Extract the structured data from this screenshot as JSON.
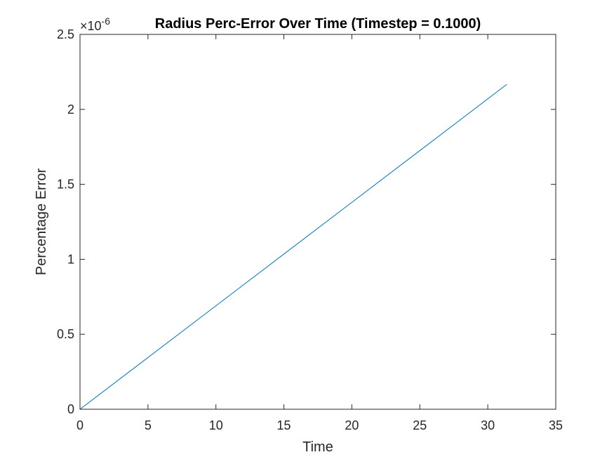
{
  "chart_data": {
    "type": "line",
    "title": "Radius Perc-Error Over Time (Timestep = 0.1000)",
    "xlabel": "Time",
    "ylabel": "Percentage Error",
    "xlim": [
      0,
      35
    ],
    "ylim": [
      0,
      2.5e-06
    ],
    "y_exponent_label": "×10",
    "y_exponent_power": "-6",
    "xticks": [
      0,
      5,
      10,
      15,
      20,
      25,
      30,
      35
    ],
    "xtick_labels": [
      "0",
      "5",
      "10",
      "15",
      "20",
      "25",
      "30",
      "35"
    ],
    "yticks": [
      0,
      0.5,
      1,
      1.5,
      2,
      2.5
    ],
    "ytick_labels": [
      "0",
      "0.5",
      "1",
      "1.5",
      "2",
      "2.5"
    ],
    "grid": false,
    "series": [
      {
        "color": "#0072BD",
        "x": [
          0,
          5,
          10,
          15,
          20,
          25,
          31.4
        ],
        "y": [
          0,
          3.45e-07,
          6.9e-07,
          1.035e-06,
          1.38e-06,
          1.725e-06,
          2.167e-06
        ]
      }
    ]
  }
}
